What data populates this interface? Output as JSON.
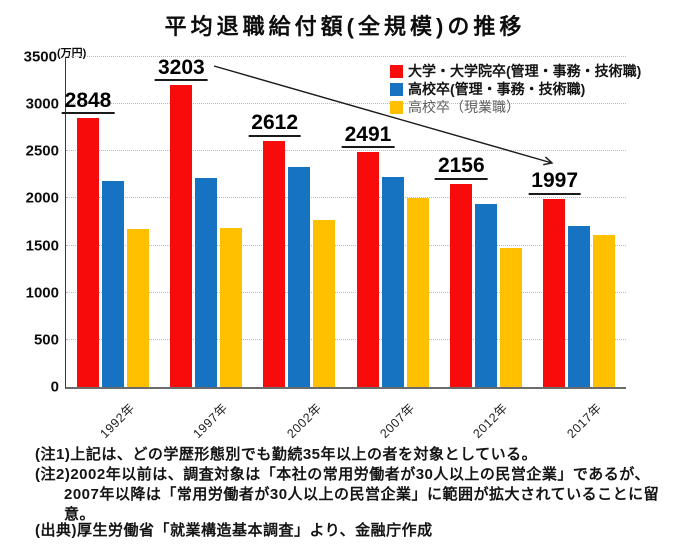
{
  "title": "平均退職給付額(全規模)の推移",
  "chart_data": {
    "type": "bar",
    "title": "平均退職給付額(全規模)の推移",
    "unit": "(万円)",
    "categories": [
      "1992年",
      "1997年",
      "2002年",
      "2007年",
      "2012年",
      "2017年"
    ],
    "series": [
      {
        "name": "大学・大学院卒(管理・事務・技術職)",
        "color": "#f70b0b",
        "values": [
          2848,
          3203,
          2612,
          2491,
          2156,
          1997
        ],
        "data_labels": true
      },
      {
        "name": "高校卒(管理・事務・技術職)",
        "color": "#1673c1",
        "values": [
          2180,
          2220,
          2330,
          2230,
          1940,
          1710
        ]
      },
      {
        "name": "高校卒（現業職）",
        "color": "#ffc000",
        "values": [
          1680,
          1690,
          1770,
          2010,
          1470,
          1610
        ],
        "muted_legend": true
      }
    ],
    "ylim": [
      0,
      3500
    ],
    "ytick_step": 500,
    "grid": true,
    "legend_position": "top-right-inside",
    "annotation": {
      "type": "arrow",
      "from_value_label": "3203",
      "to_value_label": "1997"
    }
  },
  "notes": [
    {
      "text": "(注1)上記は、どの学歴形態別でも勤続35年以上の者を対象としている。",
      "indent": false
    },
    {
      "text": "(注2)2002年以前は、調査対象は「本社の常用労働者が30人以上の民営企業」であるが、",
      "indent": false
    },
    {
      "text": "2007年以降は「常用労働者が30人以上の民営企業」に範囲が拡大されていることに留意。",
      "indent": true
    }
  ],
  "source": "(出典)厚生労働省「就業構造基本調査」より、金融庁作成"
}
